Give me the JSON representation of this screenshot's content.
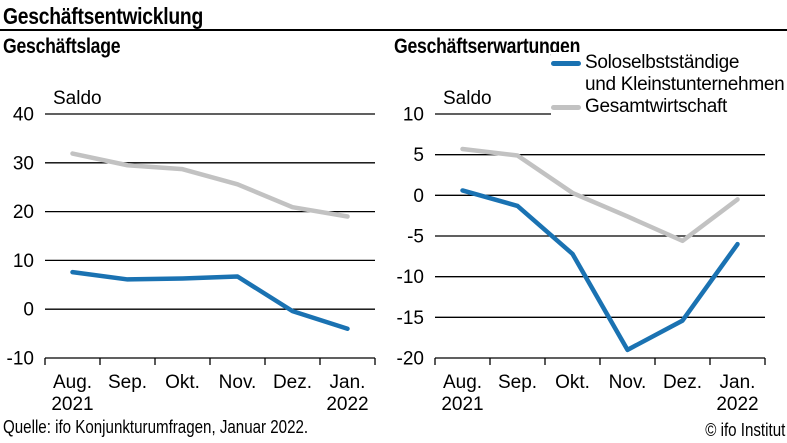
{
  "header": {
    "title": "Geschäftsentwicklung"
  },
  "footer": {
    "source": "Quelle: ifo Konjunkturumfragen, Januar 2022.",
    "copyright": "© ifo Institut"
  },
  "colors": {
    "solo": "#1a72b2",
    "gesamt": "#c2c2c2",
    "grid": "#000000",
    "text": "#000000"
  },
  "legend": {
    "position": "top-right",
    "series1_line1": "Soloselbstständige",
    "series1_line2": "und Kleinstunternehmen",
    "series2_label": "Gesamtwirtschaft"
  },
  "x_axis": {
    "month_labels": [
      "Aug.",
      "Sep.",
      "Okt.",
      "Nov.",
      "Dez.",
      "Jan."
    ],
    "year_sublabels": [
      "2021",
      "",
      "",
      "",
      "",
      "2022"
    ]
  },
  "chart_data": [
    {
      "type": "line",
      "title": "Geschäftslage",
      "axis_label": "Saldo",
      "ylim": [
        -10,
        40
      ],
      "ystep": 10,
      "grid": true,
      "categories": [
        "Aug. 2021",
        "Sep. 2021",
        "Okt. 2021",
        "Nov. 2021",
        "Dez. 2021",
        "Jan. 2022"
      ],
      "series": [
        {
          "name": "Soloselbstständige und Kleinstunternehmen",
          "color_key": "solo",
          "values": [
            7.6,
            6.1,
            6.3,
            6.7,
            -0.4,
            -4.0
          ]
        },
        {
          "name": "Gesamtwirtschaft",
          "color_key": "gesamt",
          "values": [
            31.9,
            29.5,
            28.7,
            25.6,
            20.9,
            19.0
          ]
        }
      ]
    },
    {
      "type": "line",
      "title": "Geschäftserwartungen",
      "axis_label": "Saldo",
      "ylim": [
        -20,
        10
      ],
      "ystep": 5,
      "grid": true,
      "categories": [
        "Aug. 2021",
        "Sep. 2021",
        "Okt. 2021",
        "Nov. 2021",
        "Dez. 2021",
        "Jan. 2022"
      ],
      "series": [
        {
          "name": "Soloselbstständige und Kleinstunternehmen",
          "color_key": "solo",
          "values": [
            0.6,
            -1.3,
            -7.2,
            -19.0,
            -15.4,
            -6.0
          ]
        },
        {
          "name": "Gesamtwirtschaft",
          "color_key": "gesamt",
          "values": [
            5.7,
            4.9,
            0.3,
            -2.6,
            -5.6,
            -0.5
          ]
        }
      ]
    }
  ]
}
